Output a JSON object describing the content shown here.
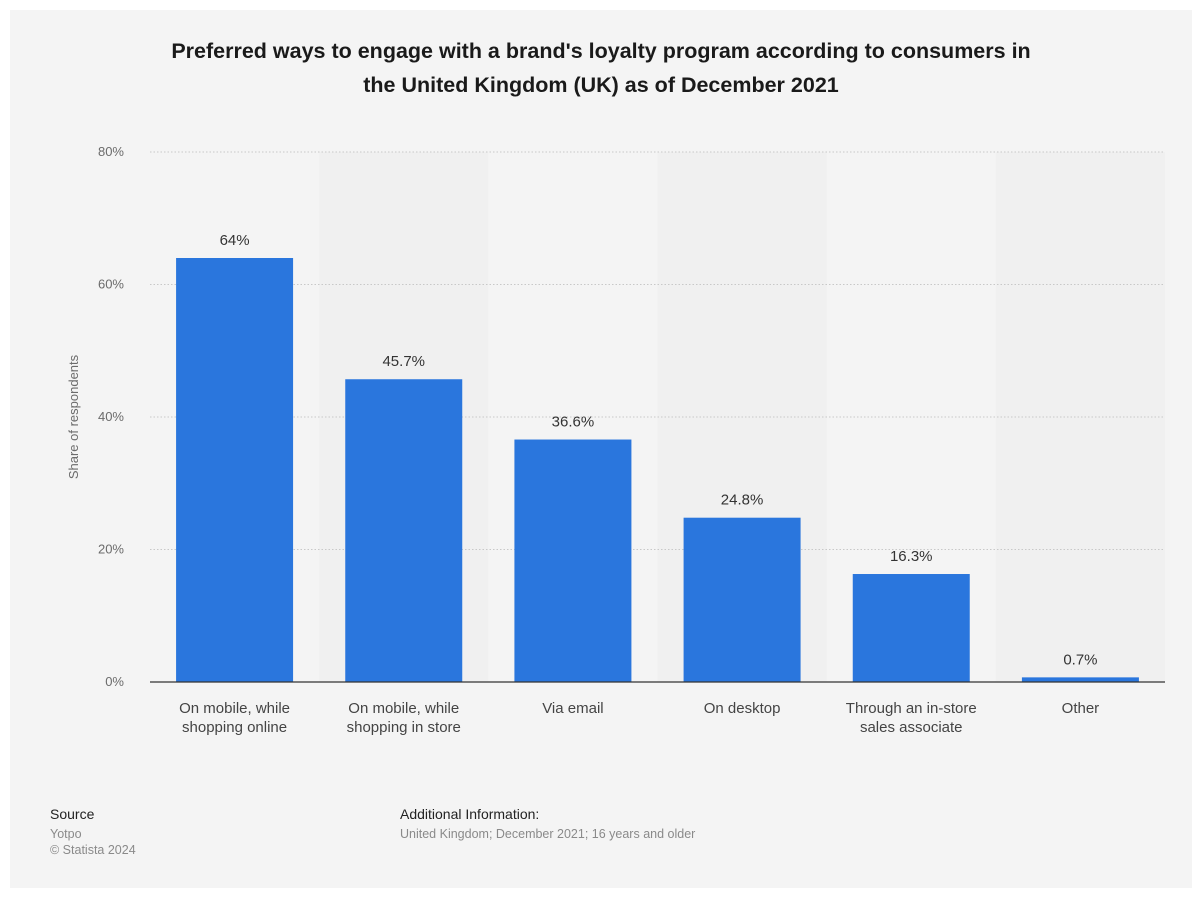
{
  "title_lines": [
    "Preferred ways to engage with a brand's loyalty program according to consumers in",
    "the United Kingdom (UK) as of December 2021"
  ],
  "colors": {
    "bar": "#2a76dd",
    "panel": "#f4f4f4",
    "band": "#f0f0f0",
    "axis": "#333333"
  },
  "chart_data": {
    "type": "bar",
    "categories": [
      [
        "On mobile, while",
        "shopping online"
      ],
      [
        "On mobile, while",
        "shopping in store"
      ],
      [
        "Via email"
      ],
      [
        "On desktop"
      ],
      [
        "Through an in-store",
        "sales associate"
      ],
      [
        "Other"
      ]
    ],
    "values": [
      64,
      45.7,
      36.6,
      24.8,
      16.3,
      0.7
    ],
    "value_labels": [
      "64%",
      "45.7%",
      "36.6%",
      "24.8%",
      "16.3%",
      "0.7%"
    ],
    "ylabel": "Share of respondents",
    "ylim": [
      0,
      80
    ],
    "yticks": [
      0,
      20,
      40,
      60,
      80
    ],
    "ytick_labels": [
      "0%",
      "20%",
      "40%",
      "60%",
      "80%"
    ],
    "grid": true,
    "legend": "none"
  },
  "footer": {
    "source_heading": "Source",
    "source_lines": [
      "Yotpo",
      "© Statista 2024"
    ],
    "info_heading": "Additional Information:",
    "info_lines": [
      "United Kingdom; December 2021; 16 years and older"
    ]
  }
}
